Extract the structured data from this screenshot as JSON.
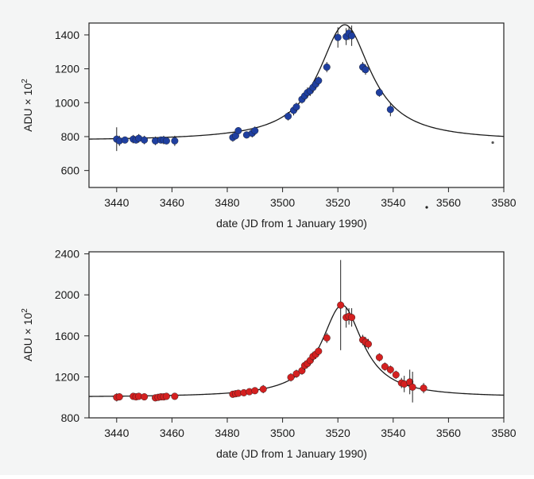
{
  "chart_data": [
    {
      "type": "scatter",
      "xlabel": "date (JD from 1 January 1990)",
      "ylabel": "ADU × 10",
      "ylabel_superscript": "2",
      "xlim": [
        3430,
        3580
      ],
      "ylim": [
        500,
        1470
      ],
      "xticks": [
        "3440",
        "3460",
        "3480",
        "3500",
        "3520",
        "3540",
        "3560",
        "3580"
      ],
      "yticks": [
        "600",
        "800",
        "1000",
        "1200",
        "1400"
      ],
      "marker_color": "#1f3fa0",
      "curve": {
        "baseline": 775,
        "peak": 1460,
        "t0": 3522.5,
        "tau": 14.5
      },
      "series": [
        {
          "x": [
            3440,
            3441,
            3443,
            3446,
            3447,
            3448,
            3450,
            3454,
            3456,
            3457,
            3458,
            3461,
            3482,
            3483,
            3484,
            3487,
            3489,
            3490,
            3502,
            3504,
            3505,
            3507,
            3508,
            3509,
            3510,
            3511,
            3512,
            3513,
            3516,
            3520,
            3523,
            3524,
            3525,
            3529,
            3530,
            3535,
            3539
          ],
          "y": [
            785,
            775,
            780,
            785,
            780,
            790,
            780,
            775,
            780,
            780,
            775,
            775,
            795,
            805,
            835,
            810,
            820,
            835,
            920,
            955,
            975,
            1020,
            1040,
            1060,
            1070,
            1090,
            1110,
            1130,
            1210,
            1385,
            1390,
            1410,
            1395,
            1210,
            1195,
            1060,
            960
          ],
          "err": [
            70,
            30,
            20,
            25,
            20,
            25,
            25,
            25,
            20,
            25,
            20,
            30,
            25,
            20,
            20,
            20,
            25,
            25,
            25,
            30,
            25,
            25,
            25,
            30,
            30,
            30,
            25,
            25,
            30,
            60,
            50,
            40,
            60,
            30,
            30,
            25,
            40
          ]
        }
      ],
      "extra_points": [
        {
          "x": 3576,
          "y": 765
        }
      ]
    },
    {
      "type": "scatter",
      "xlabel": "date (JD from 1 January 1990)",
      "ylabel": "ADU × 10",
      "ylabel_superscript": "2",
      "xlim": [
        3430,
        3580
      ],
      "ylim": [
        800,
        2420
      ],
      "xticks": [
        "3440",
        "3460",
        "3480",
        "3500",
        "3520",
        "3540",
        "3560",
        "3580"
      ],
      "yticks": [
        "800",
        "1200",
        "1600",
        "2000",
        "2400"
      ],
      "marker_color": "#d42020",
      "curve": {
        "baseline": 1000,
        "peak": 1900,
        "t0": 3521.5,
        "tau": 11.5
      },
      "series": [
        {
          "x": [
            3440,
            3441,
            3446,
            3447,
            3448,
            3450,
            3454,
            3455,
            3456,
            3457,
            3458,
            3461,
            3482,
            3483,
            3484,
            3486,
            3488,
            3490,
            3493,
            3503,
            3505,
            3507,
            3508,
            3509,
            3510,
            3511,
            3512,
            3513,
            3516,
            3521,
            3523,
            3524,
            3525,
            3529,
            3530,
            3531,
            3535,
            3537,
            3539,
            3541,
            3543,
            3544,
            3546,
            3547,
            3551
          ],
          "y": [
            1000,
            1005,
            1010,
            1005,
            1010,
            1005,
            995,
            1000,
            1005,
            1005,
            1010,
            1010,
            1030,
            1035,
            1040,
            1045,
            1055,
            1065,
            1080,
            1195,
            1230,
            1260,
            1310,
            1330,
            1360,
            1400,
            1420,
            1450,
            1580,
            1900,
            1780,
            1790,
            1780,
            1560,
            1540,
            1520,
            1390,
            1300,
            1270,
            1220,
            1140,
            1130,
            1150,
            1100,
            1090
          ],
          "err": [
            40,
            35,
            30,
            30,
            30,
            30,
            30,
            30,
            30,
            30,
            30,
            30,
            30,
            30,
            30,
            30,
            30,
            30,
            40,
            40,
            40,
            40,
            45,
            45,
            40,
            45,
            45,
            40,
            50,
            440,
            100,
            80,
            90,
            50,
            50,
            50,
            40,
            40,
            40,
            40,
            50,
            80,
            120,
            150,
            50
          ]
        }
      ]
    }
  ]
}
